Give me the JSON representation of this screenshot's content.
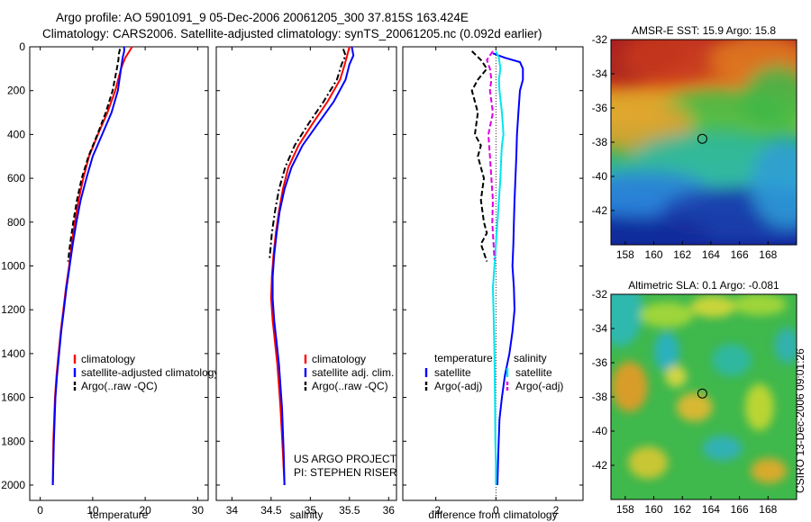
{
  "header": {
    "line1": "Argo profile: AO 5901091_9 05-Dec-2006 20061205_300 37.815S 163.424E",
    "line2": "Climatology: CARS2006. Satellite-adjusted climatology: synTS_20061205.nc (0.092d earlier)"
  },
  "side_text": "CSIRO 13-Dec-2006 09:01:26",
  "chart_data": [
    {
      "id": "temperature",
      "type": "line",
      "xlabel": "temperature",
      "ylabel": "",
      "xlim": [
        -2,
        32
      ],
      "ylim": [
        2070,
        0
      ],
      "xticks": [
        "0",
        "10",
        "20",
        "30"
      ],
      "xtick_values": [
        0,
        10,
        20,
        30
      ],
      "yticks": [
        "0",
        "200",
        "400",
        "600",
        "800",
        "1000",
        "1200",
        "1400",
        "1600",
        "1800",
        "2000"
      ],
      "ytick_values": [
        0,
        200,
        400,
        600,
        800,
        1000,
        1200,
        1400,
        1600,
        1800,
        2000
      ],
      "legend": [
        "climatology",
        "satellite-adjusted climatology",
        "Argo(..raw -QC)"
      ],
      "series": [
        {
          "name": "climatology",
          "color": "#ff0000",
          "dash": "solid",
          "x": [
            17.5,
            17,
            16.2,
            15.4,
            14.3,
            12.8,
            11,
            9.3,
            8.2,
            7.3,
            6.6,
            6.0,
            5.5,
            4.9,
            4.4,
            3.9,
            3.5,
            3.1,
            2.8,
            2.5,
            2.4
          ],
          "y": [
            0,
            20,
            50,
            100,
            200,
            300,
            400,
            500,
            600,
            700,
            800,
            900,
            1000,
            1100,
            1200,
            1300,
            1400,
            1500,
            1600,
            1800,
            2000
          ]
        },
        {
          "name": "satellite-adjusted climatology",
          "color": "#0000ff",
          "dash": "solid",
          "x": [
            16,
            16,
            15.7,
            15.4,
            14.8,
            13.6,
            11.8,
            10.0,
            8.8,
            7.7,
            6.9,
            6.2,
            5.6,
            5.0,
            4.5,
            4.0,
            3.6,
            3.2,
            2.9,
            2.6,
            2.4
          ],
          "y": [
            0,
            20,
            50,
            100,
            200,
            300,
            400,
            500,
            600,
            700,
            800,
            900,
            1000,
            1100,
            1200,
            1300,
            1400,
            1500,
            1600,
            1800,
            2000
          ]
        },
        {
          "name": "Argo(..raw -QC)",
          "color": "#000000",
          "dash": "dash",
          "x": [
            15.2,
            15,
            14.9,
            14.6,
            13.8,
            12.5,
            10.9,
            9.2,
            7.9,
            7.0,
            6.3,
            5.7,
            5.3
          ],
          "y": [
            10,
            30,
            60,
            100,
            200,
            300,
            400,
            500,
            600,
            700,
            800,
            900,
            980
          ]
        }
      ]
    },
    {
      "id": "salinity",
      "type": "line",
      "xlabel": "salinity",
      "ylabel": "",
      "xlim": [
        33.8,
        36.1
      ],
      "ylim": [
        2070,
        0
      ],
      "xticks": [
        "34",
        "34.5",
        "35",
        "35.5",
        "36"
      ],
      "xtick_values": [
        34,
        34.5,
        35,
        35.5,
        36
      ],
      "legend": [
        "climatology",
        "satellite adj. clim.",
        "Argo(..raw -QC)"
      ],
      "annotation": [
        "US ARGO PROJECT",
        "PI: STEPHEN RISER"
      ],
      "series": [
        {
          "name": "climatology",
          "color": "#ff0000",
          "dash": "solid",
          "x": [
            35.5,
            35.47,
            35.44,
            35.38,
            35.22,
            35.03,
            34.85,
            34.72,
            34.65,
            34.6,
            34.56,
            34.53,
            34.51,
            34.5,
            34.52,
            34.55,
            34.58,
            34.6,
            34.62,
            34.65,
            34.67
          ],
          "y": [
            0,
            40,
            80,
            150,
            250,
            350,
            450,
            550,
            650,
            750,
            850,
            950,
            1050,
            1150,
            1250,
            1350,
            1450,
            1550,
            1650,
            1850,
            2000
          ]
        },
        {
          "name": "satellite adj. clim.",
          "color": "#0000ff",
          "dash": "solid",
          "x": [
            35.53,
            35.55,
            35.5,
            35.45,
            35.3,
            35.1,
            34.9,
            34.76,
            34.67,
            34.61,
            34.57,
            34.54,
            34.52,
            34.52,
            34.54,
            34.57,
            34.6,
            34.62,
            34.64,
            34.66,
            34.67
          ],
          "y": [
            0,
            40,
            80,
            150,
            250,
            350,
            450,
            550,
            650,
            750,
            850,
            950,
            1050,
            1150,
            1250,
            1350,
            1450,
            1550,
            1650,
            1850,
            2000
          ]
        },
        {
          "name": "Argo(..raw -QC)",
          "color": "#000000",
          "dash": "dashdot",
          "x": [
            35.42,
            35.45,
            35.4,
            35.34,
            35.17,
            34.98,
            34.8,
            34.68,
            34.6,
            34.55,
            34.51,
            34.49,
            34.48
          ],
          "y": [
            10,
            40,
            80,
            150,
            250,
            350,
            450,
            550,
            650,
            750,
            850,
            930,
            970
          ]
        }
      ]
    },
    {
      "id": "difference",
      "type": "line",
      "xlabel": "difference from climatology",
      "ylabel": "",
      "xlim": [
        -3.1,
        2.9
      ],
      "ylim": [
        2070,
        0
      ],
      "xticks": [
        "-2",
        "0",
        "2"
      ],
      "xtick_values": [
        -2,
        0,
        2
      ],
      "legend_headers": [
        "temperature",
        "salinity"
      ],
      "legend": [
        "satellite",
        "Argo(-adj)",
        "satellite",
        "Argo(-adj)"
      ],
      "series": [
        {
          "name": "satellite",
          "color": "#0000ff",
          "dash": "solid",
          "x": [
            -0.1,
            0.3,
            0.8,
            0.9,
            0.9,
            0.8,
            0.75,
            0.7,
            0.68,
            0.65,
            0.62,
            0.6,
            0.58,
            0.55,
            0.6,
            0.62,
            0.55,
            0.45,
            0.3,
            0.2,
            0.12,
            0.08,
            0.05
          ],
          "y": [
            30,
            50,
            70,
            100,
            150,
            200,
            300,
            400,
            500,
            600,
            700,
            800,
            900,
            1000,
            1100,
            1200,
            1300,
            1400,
            1500,
            1600,
            1700,
            1850,
            2000
          ]
        },
        {
          "name": "Argo(-adj)",
          "color": "#000000",
          "dash": "dash",
          "x": [
            -0.8,
            -0.5,
            -0.3,
            -0.6,
            -0.8,
            -0.6,
            -0.7,
            -0.5,
            -0.6,
            -0.4,
            -0.5,
            -0.4,
            -0.3,
            -0.5,
            -0.3
          ],
          "y": [
            20,
            60,
            100,
            150,
            200,
            300,
            400,
            450,
            500,
            600,
            700,
            800,
            850,
            900,
            980
          ]
        },
        {
          "name": "satellite",
          "color": "#00e5ee",
          "dash": "solid",
          "x": [
            0,
            0.1,
            0.15,
            0.1,
            0.12,
            0.2,
            0.25,
            0.2,
            0.18,
            0.15,
            0.1,
            0.05,
            0.0,
            -0.05,
            -0.1,
            -0.08,
            -0.05,
            -0.03,
            -0.02,
            0.0,
            0.0
          ],
          "y": [
            20,
            50,
            100,
            150,
            200,
            300,
            400,
            450,
            500,
            600,
            700,
            800,
            900,
            1000,
            1100,
            1200,
            1400,
            1600,
            1800,
            1900,
            2000
          ]
        },
        {
          "name": "Argo(-adj)",
          "color": "#e000e0",
          "dash": "dash",
          "x": [
            -0.1,
            -0.3,
            -0.2,
            -0.15,
            -0.2,
            -0.1,
            -0.25,
            -0.2,
            -0.15,
            -0.1,
            -0.12,
            -0.08,
            -0.05
          ],
          "y": [
            20,
            60,
            100,
            150,
            200,
            300,
            400,
            500,
            600,
            700,
            800,
            900,
            970
          ]
        }
      ]
    },
    {
      "id": "sst_map",
      "type": "heatmap",
      "title": "AMSR-E SST: 15.9 Argo: 15.8",
      "xlim": [
        157,
        170
      ],
      "ylim": [
        -44,
        -32
      ],
      "xticks": [
        "158",
        "160",
        "162",
        "164",
        "166",
        "168"
      ],
      "xtick_values": [
        158,
        160,
        162,
        164,
        166,
        168
      ],
      "yticks": [
        "-32",
        "-34",
        "-36",
        "-38",
        "-40",
        "-42"
      ],
      "ytick_values": [
        -32,
        -34,
        -36,
        -38,
        -40,
        -42
      ],
      "marker": [
        163.4,
        -37.8
      ]
    },
    {
      "id": "sla_map",
      "type": "heatmap",
      "title": "Altimetric SLA: 0.1 Argo: -0.081",
      "xlim": [
        157,
        170
      ],
      "ylim": [
        -44,
        -32
      ],
      "xticks": [
        "158",
        "160",
        "162",
        "164",
        "166",
        "168"
      ],
      "xtick_values": [
        158,
        160,
        162,
        164,
        166,
        168
      ],
      "yticks": [
        "-32",
        "-34",
        "-36",
        "-38",
        "-40",
        "-42"
      ],
      "ytick_values": [
        -32,
        -34,
        -36,
        -38,
        -40,
        -42
      ],
      "marker": [
        163.4,
        -37.8
      ]
    }
  ]
}
